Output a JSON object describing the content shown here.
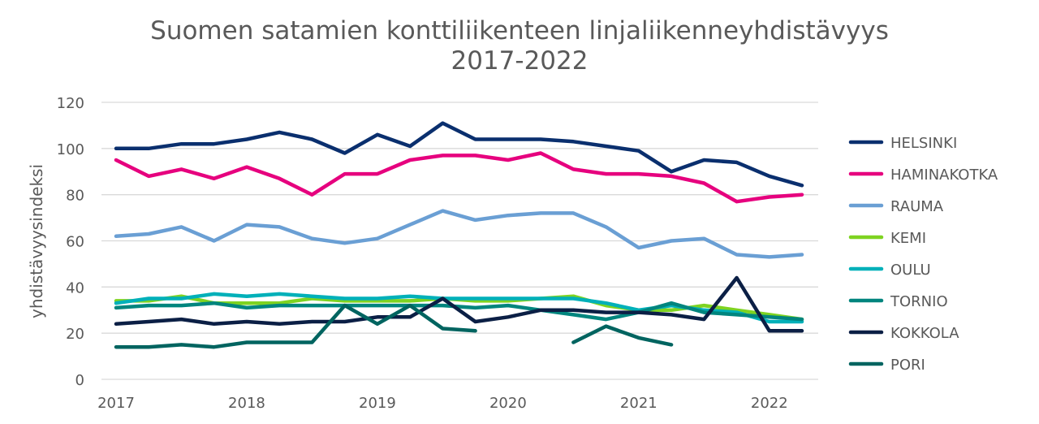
{
  "chart_data": {
    "type": "line",
    "title": [
      "Suomen satamien konttiliikenteen linjaliikenneyhdistävyys",
      "2017-2022"
    ],
    "ylabel": "yhdistävyysindeksi",
    "xlabel": "",
    "ylim": [
      0,
      120
    ],
    "yticks": [
      0,
      20,
      40,
      60,
      80,
      100,
      120
    ],
    "xtick_labels": [
      "2017",
      "2018",
      "2019",
      "2020",
      "2021",
      "2022"
    ],
    "x": [
      "2017Q1",
      "2017Q2",
      "2017Q3",
      "2017Q4",
      "2018Q1",
      "2018Q2",
      "2018Q3",
      "2018Q4",
      "2019Q1",
      "2019Q2",
      "2019Q3",
      "2019Q4",
      "2020Q1",
      "2020Q2",
      "2020Q3",
      "2020Q4",
      "2021Q1",
      "2021Q2",
      "2021Q3",
      "2021Q4",
      "2022Q1",
      "2022Q2"
    ],
    "grid": true,
    "legend_position": "right",
    "series": [
      {
        "name": "HELSINKI",
        "color": "#0a2f6e",
        "values": [
          100,
          100,
          102,
          102,
          104,
          107,
          104,
          98,
          106,
          101,
          111,
          104,
          104,
          104,
          103,
          101,
          99,
          90,
          95,
          94,
          88,
          84
        ]
      },
      {
        "name": "HAMINAKOTKA",
        "color": "#e6007e",
        "values": [
          95,
          88,
          91,
          87,
          92,
          87,
          80,
          89,
          89,
          95,
          97,
          97,
          95,
          98,
          91,
          89,
          89,
          88,
          85,
          77,
          79,
          80
        ]
      },
      {
        "name": "RAUMA",
        "color": "#6a9fd4",
        "values": [
          62,
          63,
          66,
          60,
          67,
          66,
          61,
          59,
          61,
          67,
          73,
          69,
          71,
          72,
          72,
          66,
          57,
          60,
          61,
          54,
          53,
          54
        ]
      },
      {
        "name": "KEMI",
        "color": "#7ed321",
        "values": [
          34,
          34,
          36,
          33,
          33,
          33,
          35,
          34,
          34,
          34,
          35,
          34,
          34,
          35,
          36,
          32,
          30,
          30,
          32,
          30,
          28,
          26
        ]
      },
      {
        "name": "OULU",
        "color": "#00b0b9",
        "values": [
          33,
          35,
          35,
          37,
          36,
          37,
          36,
          35,
          35,
          36,
          35,
          35,
          35,
          35,
          35,
          33,
          30,
          32,
          30,
          29,
          25,
          25
        ]
      },
      {
        "name": "TORNIO",
        "color": "#00857e",
        "values": [
          31,
          32,
          32,
          33,
          31,
          32,
          32,
          32,
          32,
          32,
          32,
          31,
          32,
          30,
          28,
          26,
          29,
          33,
          29,
          28,
          27,
          26
        ]
      },
      {
        "name": "KOKKOLA",
        "color": "#0b1f45",
        "values": [
          24,
          25,
          26,
          24,
          25,
          24,
          25,
          25,
          27,
          27,
          35,
          25,
          27,
          30,
          30,
          29,
          29,
          28,
          26,
          44,
          21,
          21
        ]
      },
      {
        "name": "PORI",
        "color": "#006460",
        "values": [
          14,
          14,
          15,
          14,
          16,
          16,
          16,
          32,
          24,
          32,
          22,
          21,
          null,
          null,
          16,
          23,
          18,
          15,
          null,
          null,
          null,
          null
        ]
      }
    ]
  }
}
